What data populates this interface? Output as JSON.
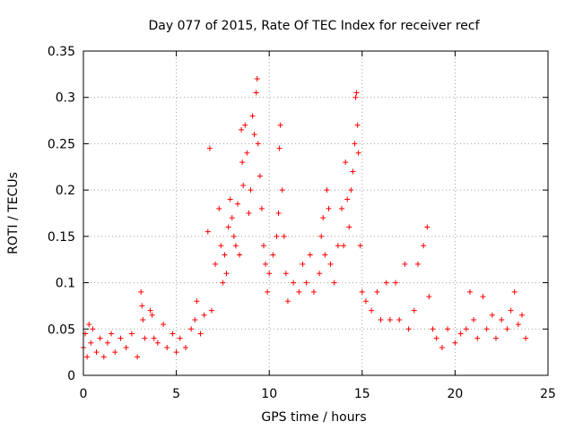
{
  "chart_data": {
    "type": "scatter",
    "title": "Day 077 of 2015, Rate Of TEC Index for receiver recf",
    "xlabel": "GPS time / hours",
    "ylabel": "ROTI / TECUs",
    "xlim": [
      0,
      25
    ],
    "ylim": [
      0,
      0.35
    ],
    "xticks": [
      0,
      5,
      10,
      15,
      20,
      25
    ],
    "xtick_labels": [
      "0",
      "5",
      "10",
      "15",
      "20",
      "25"
    ],
    "yticks": [
      0,
      0.05,
      0.1,
      0.15,
      0.2,
      0.25,
      0.3,
      0.35
    ],
    "ytick_labels": [
      "0",
      "0.05",
      "0.1",
      "0.15",
      "0.2",
      "0.25",
      "0.3",
      "0.35"
    ],
    "grid": true,
    "marker": "plus",
    "color": "#ff0000",
    "points": [
      [
        0.0,
        0.03
      ],
      [
        0.1,
        0.045
      ],
      [
        0.2,
        0.02
      ],
      [
        0.3,
        0.055
      ],
      [
        0.4,
        0.035
      ],
      [
        0.5,
        0.05
      ],
      [
        0.7,
        0.025
      ],
      [
        0.9,
        0.04
      ],
      [
        1.1,
        0.02
      ],
      [
        1.3,
        0.035
      ],
      [
        1.5,
        0.045
      ],
      [
        1.7,
        0.025
      ],
      [
        2.0,
        0.04
      ],
      [
        2.3,
        0.03
      ],
      [
        2.6,
        0.045
      ],
      [
        2.9,
        0.02
      ],
      [
        3.1,
        0.09
      ],
      [
        3.15,
        0.075
      ],
      [
        3.2,
        0.06
      ],
      [
        3.3,
        0.04
      ],
      [
        3.6,
        0.07
      ],
      [
        3.7,
        0.065
      ],
      [
        3.8,
        0.04
      ],
      [
        4.0,
        0.035
      ],
      [
        4.3,
        0.055
      ],
      [
        4.5,
        0.03
      ],
      [
        4.8,
        0.045
      ],
      [
        5.0,
        0.025
      ],
      [
        5.2,
        0.04
      ],
      [
        5.5,
        0.03
      ],
      [
        5.8,
        0.05
      ],
      [
        6.0,
        0.06
      ],
      [
        6.1,
        0.08
      ],
      [
        6.3,
        0.045
      ],
      [
        6.5,
        0.065
      ],
      [
        6.7,
        0.155
      ],
      [
        6.8,
        0.245
      ],
      [
        6.9,
        0.07
      ],
      [
        7.1,
        0.12
      ],
      [
        7.3,
        0.18
      ],
      [
        7.4,
        0.14
      ],
      [
        7.5,
        0.1
      ],
      [
        7.6,
        0.13
      ],
      [
        7.7,
        0.11
      ],
      [
        7.8,
        0.16
      ],
      [
        7.9,
        0.19
      ],
      [
        8.0,
        0.17
      ],
      [
        8.1,
        0.15
      ],
      [
        8.2,
        0.14
      ],
      [
        8.3,
        0.185
      ],
      [
        8.4,
        0.13
      ],
      [
        8.5,
        0.265
      ],
      [
        8.55,
        0.23
      ],
      [
        8.6,
        0.205
      ],
      [
        8.7,
        0.27
      ],
      [
        8.8,
        0.24
      ],
      [
        8.9,
        0.175
      ],
      [
        9.0,
        0.2
      ],
      [
        9.1,
        0.28
      ],
      [
        9.2,
        0.26
      ],
      [
        9.3,
        0.305
      ],
      [
        9.35,
        0.32
      ],
      [
        9.4,
        0.25
      ],
      [
        9.5,
        0.215
      ],
      [
        9.6,
        0.18
      ],
      [
        9.7,
        0.14
      ],
      [
        9.8,
        0.12
      ],
      [
        9.9,
        0.09
      ],
      [
        10.0,
        0.11
      ],
      [
        10.2,
        0.13
      ],
      [
        10.4,
        0.15
      ],
      [
        10.5,
        0.175
      ],
      [
        10.55,
        0.245
      ],
      [
        10.6,
        0.27
      ],
      [
        10.7,
        0.2
      ],
      [
        10.8,
        0.15
      ],
      [
        10.9,
        0.11
      ],
      [
        11.0,
        0.08
      ],
      [
        11.3,
        0.1
      ],
      [
        11.6,
        0.09
      ],
      [
        11.8,
        0.12
      ],
      [
        12.0,
        0.1
      ],
      [
        12.2,
        0.13
      ],
      [
        12.4,
        0.09
      ],
      [
        12.7,
        0.11
      ],
      [
        12.8,
        0.15
      ],
      [
        12.9,
        0.17
      ],
      [
        13.0,
        0.13
      ],
      [
        13.1,
        0.2
      ],
      [
        13.2,
        0.18
      ],
      [
        13.3,
        0.12
      ],
      [
        13.5,
        0.1
      ],
      [
        13.7,
        0.14
      ],
      [
        13.9,
        0.18
      ],
      [
        14.0,
        0.14
      ],
      [
        14.1,
        0.23
      ],
      [
        14.2,
        0.19
      ],
      [
        14.3,
        0.16
      ],
      [
        14.4,
        0.2
      ],
      [
        14.5,
        0.22
      ],
      [
        14.6,
        0.25
      ],
      [
        14.65,
        0.3
      ],
      [
        14.7,
        0.305
      ],
      [
        14.75,
        0.27
      ],
      [
        14.8,
        0.24
      ],
      [
        14.9,
        0.14
      ],
      [
        15.0,
        0.09
      ],
      [
        15.2,
        0.08
      ],
      [
        15.5,
        0.07
      ],
      [
        15.8,
        0.09
      ],
      [
        16.0,
        0.06
      ],
      [
        16.3,
        0.1
      ],
      [
        16.5,
        0.06
      ],
      [
        16.8,
        0.1
      ],
      [
        17.0,
        0.06
      ],
      [
        17.3,
        0.12
      ],
      [
        17.5,
        0.05
      ],
      [
        17.8,
        0.07
      ],
      [
        18.0,
        0.12
      ],
      [
        18.3,
        0.14
      ],
      [
        18.5,
        0.16
      ],
      [
        18.6,
        0.085
      ],
      [
        18.8,
        0.05
      ],
      [
        19.0,
        0.04
      ],
      [
        19.3,
        0.03
      ],
      [
        19.6,
        0.05
      ],
      [
        20.0,
        0.035
      ],
      [
        20.3,
        0.045
      ],
      [
        20.6,
        0.05
      ],
      [
        20.8,
        0.09
      ],
      [
        21.0,
        0.06
      ],
      [
        21.2,
        0.04
      ],
      [
        21.5,
        0.085
      ],
      [
        21.7,
        0.05
      ],
      [
        22.0,
        0.065
      ],
      [
        22.2,
        0.04
      ],
      [
        22.5,
        0.06
      ],
      [
        22.8,
        0.05
      ],
      [
        23.0,
        0.07
      ],
      [
        23.2,
        0.09
      ],
      [
        23.4,
        0.055
      ],
      [
        23.6,
        0.065
      ],
      [
        23.8,
        0.04
      ]
    ]
  }
}
